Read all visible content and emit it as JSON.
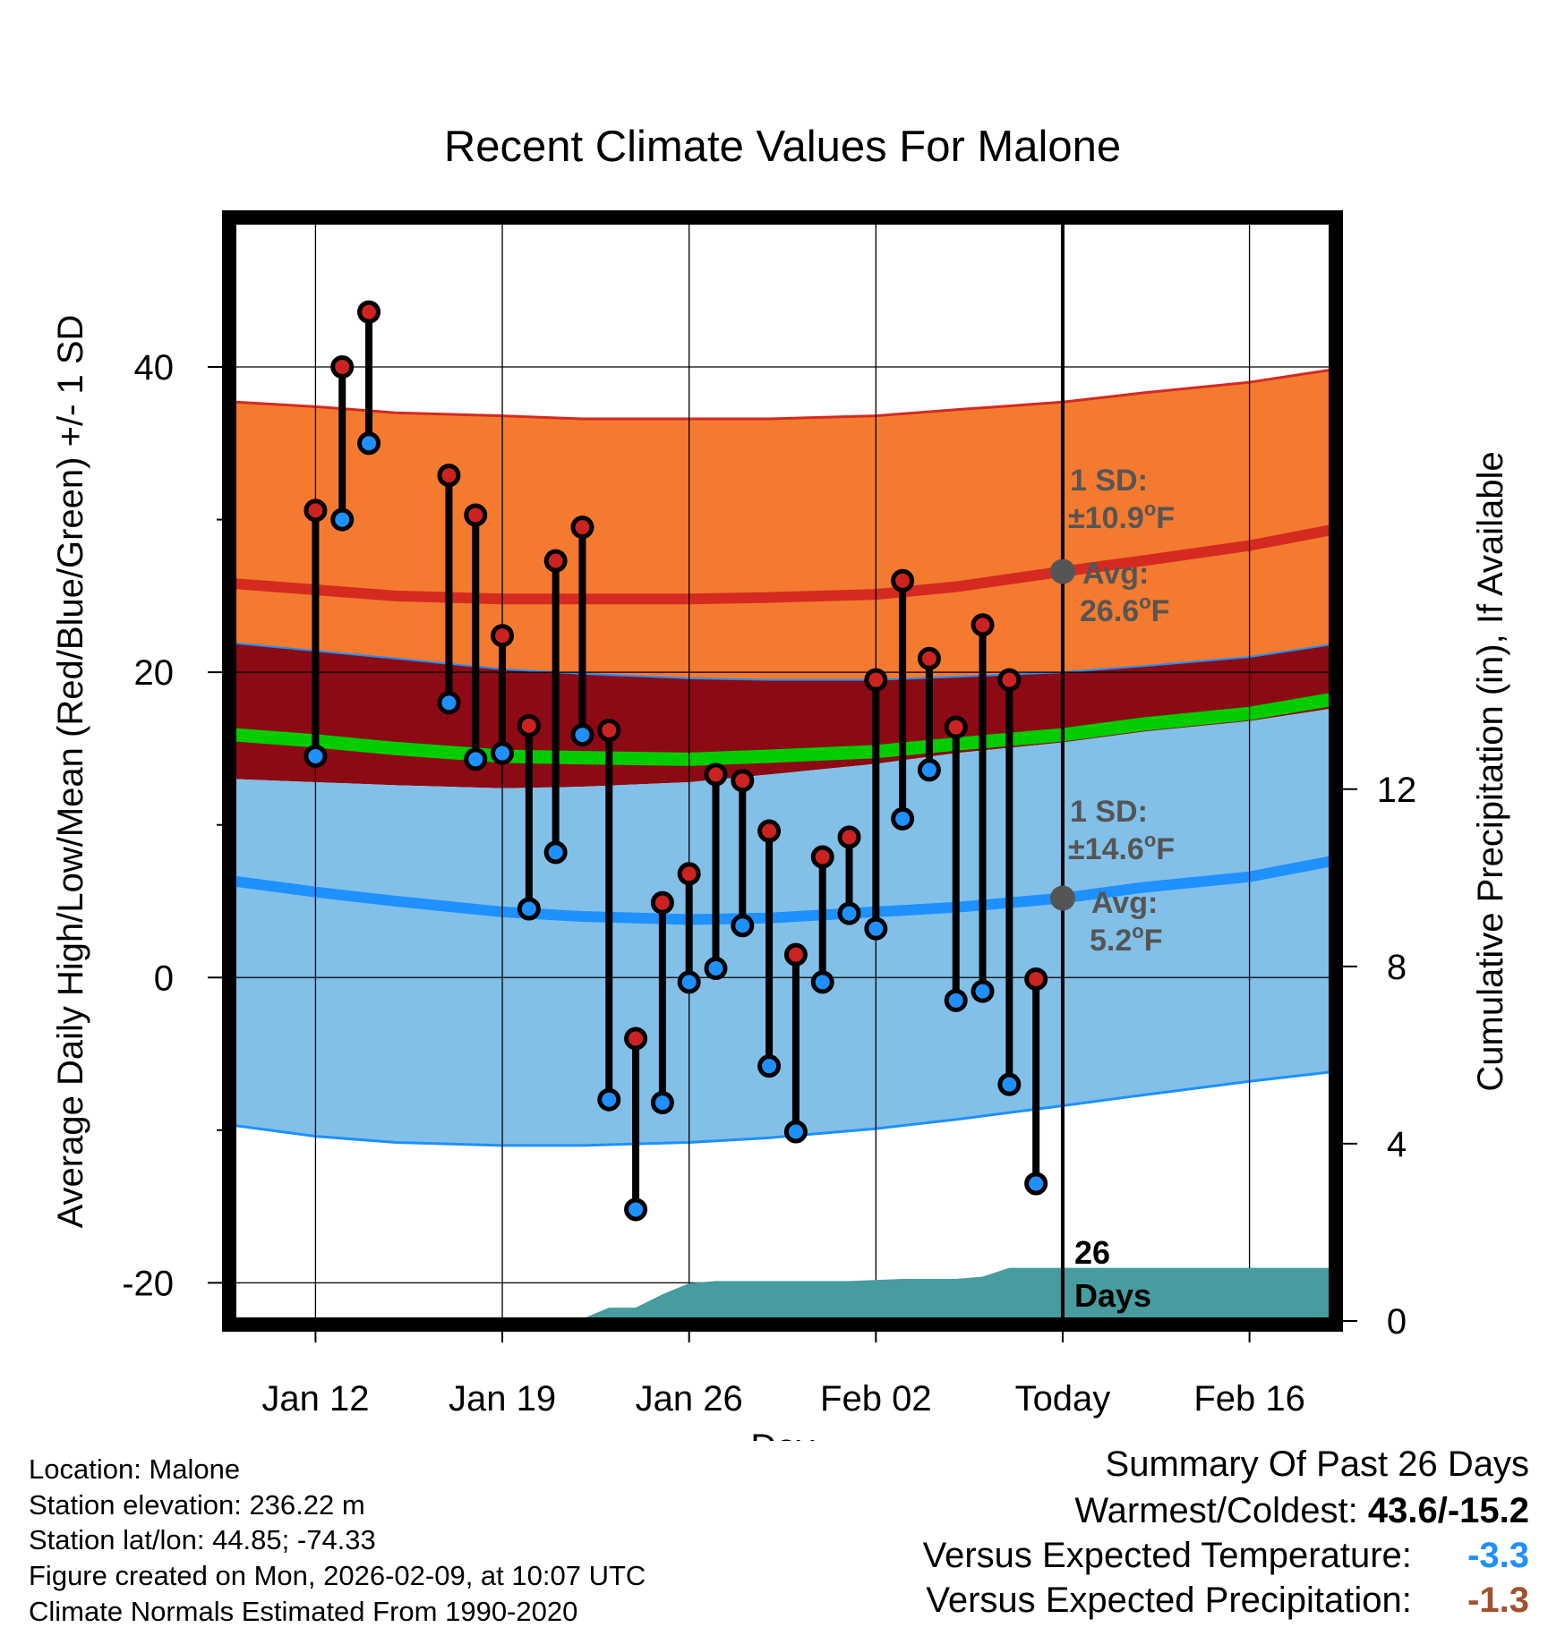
{
  "chart_data": {
    "type": "line",
    "title": "Recent Climate Values For Malone",
    "xlabel": "Day",
    "ylabel": "Average Daily High/Low/Mean (Red/Blue/Green) +/- 1 SD",
    "y2label": "Cumulative Precipitation (in), If Available",
    "ylim": [
      -22.5,
      49.5
    ],
    "y2lim": [
      0,
      24.8
    ],
    "xlim": [
      -3.0,
      38.0
    ],
    "x_ticks": [
      {
        "day": 0,
        "label": "Jan 12"
      },
      {
        "day": 7,
        "label": "Jan 19"
      },
      {
        "day": 14,
        "label": "Jan 26"
      },
      {
        "day": 21,
        "label": "Feb 02"
      },
      {
        "day": 28,
        "label": "Today"
      },
      {
        "day": 35,
        "label": "Feb 16"
      }
    ],
    "y_ticks": [
      -20,
      0,
      20,
      40
    ],
    "y_minor_ticks": [
      -10,
      10,
      30
    ],
    "y2_ticks": [
      0,
      4,
      8,
      12
    ],
    "normals": {
      "x": [
        -3,
        0,
        3,
        7,
        10,
        14,
        17,
        21,
        24,
        28,
        31,
        35,
        38
      ],
      "high_mean": [
        25.8,
        25.4,
        25.0,
        24.8,
        24.8,
        24.8,
        24.9,
        25.1,
        25.6,
        26.6,
        27.3,
        28.3,
        29.3
      ],
      "high_upper": [
        37.7,
        37.4,
        37.0,
        36.8,
        36.6,
        36.6,
        36.6,
        36.8,
        37.2,
        37.7,
        38.3,
        39.0,
        39.8
      ],
      "high_lower": [
        21.9,
        21.4,
        20.9,
        20.2,
        19.9,
        19.6,
        19.5,
        19.5,
        19.7,
        20.0,
        20.4,
        21.0,
        21.8
      ],
      "mean_line": [
        15.9,
        15.5,
        15.0,
        14.5,
        14.4,
        14.3,
        14.5,
        14.8,
        15.3,
        15.9,
        16.6,
        17.3,
        18.2
      ],
      "low_upper": [
        13.0,
        12.8,
        12.6,
        12.4,
        12.5,
        12.8,
        13.3,
        14.0,
        14.7,
        15.4,
        16.1,
        16.8,
        17.6
      ],
      "low_mean": [
        6.3,
        5.6,
        5.0,
        4.3,
        4.0,
        3.8,
        3.9,
        4.3,
        4.6,
        5.2,
        5.9,
        6.6,
        7.6
      ],
      "low_lower": [
        -9.7,
        -10.4,
        -10.8,
        -11.0,
        -11.0,
        -10.8,
        -10.5,
        -9.9,
        -9.3,
        -8.4,
        -7.7,
        -6.8,
        -6.2
      ]
    },
    "series": [
      {
        "name": "Daily High",
        "color": "#cc2222",
        "x": [
          0,
          1,
          2,
          5,
          6,
          7,
          8,
          9,
          10,
          11,
          12,
          13,
          14,
          15,
          16,
          17,
          18,
          19,
          20,
          21,
          22,
          23,
          24,
          25,
          26,
          27
        ],
        "values": [
          30.6,
          40.0,
          43.6,
          32.9,
          30.3,
          22.4,
          16.5,
          27.3,
          29.5,
          16.2,
          -4.0,
          4.9,
          6.8,
          13.3,
          12.9,
          9.6,
          1.5,
          7.9,
          9.2,
          19.5,
          26.0,
          20.9,
          16.4,
          23.1,
          19.5,
          -0.1
        ]
      },
      {
        "name": "Daily Low",
        "color": "#1e90ff",
        "x": [
          0,
          1,
          2,
          5,
          6,
          7,
          8,
          9,
          10,
          11,
          12,
          13,
          14,
          15,
          16,
          17,
          18,
          19,
          20,
          21,
          22,
          23,
          24,
          25,
          26,
          27
        ],
        "values": [
          14.5,
          30.0,
          35.0,
          18.0,
          14.3,
          14.7,
          4.5,
          8.2,
          15.9,
          -8.0,
          -15.2,
          -8.2,
          -0.3,
          0.6,
          3.4,
          -5.8,
          -10.1,
          -0.3,
          4.2,
          3.2,
          10.4,
          13.6,
          -1.5,
          -0.9,
          -7.0,
          -13.5
        ]
      }
    ],
    "precip": {
      "x": [
        -3,
        6,
        8,
        9,
        10,
        11,
        12,
        13,
        14,
        15,
        19,
        20,
        22,
        23,
        24,
        25,
        26,
        27,
        28,
        38
      ],
      "values": [
        0,
        0,
        0,
        0,
        0.05,
        0.3,
        0.3,
        0.6,
        0.85,
        0.9,
        0.9,
        0.9,
        0.95,
        0.95,
        0.95,
        1.0,
        1.2,
        1.2,
        1.2,
        1.2
      ]
    },
    "annotations": {
      "high_sd_label": "1 SD:",
      "high_sd_value": "±10.9",
      "high_avg_label": "Avg:",
      "high_avg_value": "26.6",
      "low_sd_label": "1 SD:",
      "low_sd_value": "±14.6",
      "low_avg_label": "Avg:",
      "low_avg_value": "5.2",
      "degree": "o",
      "unit": "F",
      "days_count": "26",
      "days_word": "Days"
    },
    "colors": {
      "high_band": "#f47a30",
      "high_line": "#d42a20",
      "gap_band": "#8b0a14",
      "mean_line": "#00cc00",
      "low_band": "#82c0e8",
      "low_line": "#1e90ff",
      "precip": "#479c9f",
      "marker_gray": "#555555"
    }
  },
  "info": {
    "location": "Location: Malone",
    "elevation": "Station elevation: 236.22 m",
    "latlon": "Station lat/lon: 44.85; -74.33",
    "created": "Figure created on Mon, 2026-02-09, at 10:07 UTC",
    "normals": "Climate Normals Estimated From 1990-2020"
  },
  "summary": {
    "heading": "Summary Of Past 26 Days",
    "warmest_label": "Warmest/Coldest:",
    "warmest_value": "43.6/-15.2",
    "temp_label": "Versus Expected Temperature:",
    "temp_value": "-3.3",
    "temp_color": "#1e90ff",
    "precip_label": "Versus Expected Precipitation:",
    "precip_value": "-1.3",
    "precip_color": "#a0522d"
  }
}
